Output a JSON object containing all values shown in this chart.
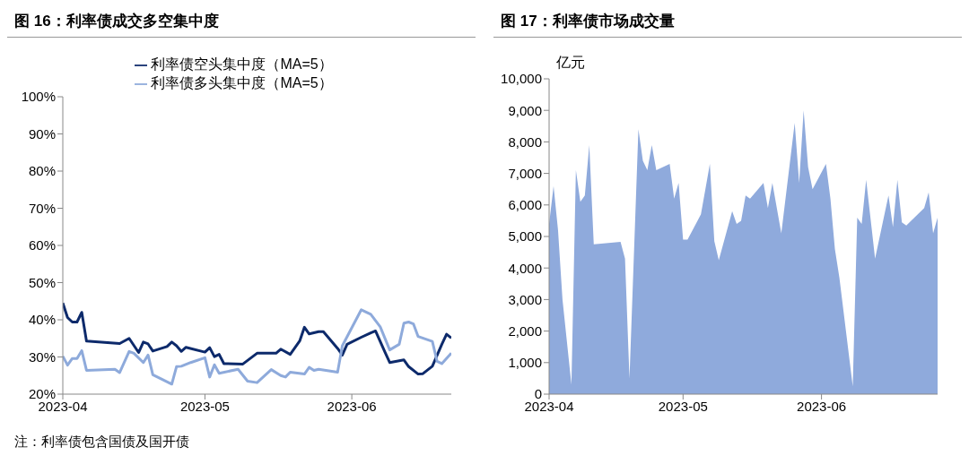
{
  "chart_data": [
    {
      "type": "line",
      "title": "图 16：利率债成交多空集中度",
      "legend": "top",
      "marker": "none",
      "line_style": "solid",
      "xlim": [
        "2023-04-01",
        "2023-06-22"
      ],
      "xticks": [
        {
          "value": "2023-04-01",
          "label": "2023-04"
        },
        {
          "value": "2023-05-01",
          "label": "2023-05"
        },
        {
          "value": "2023-06-01",
          "label": "2023-06"
        }
      ],
      "ylim": [
        20,
        100
      ],
      "yticks": [
        {
          "value": 20,
          "label": "20%"
        },
        {
          "value": 30,
          "label": "30%"
        },
        {
          "value": 40,
          "label": "40%"
        },
        {
          "value": 50,
          "label": "50%"
        },
        {
          "value": 60,
          "label": "60%"
        },
        {
          "value": 70,
          "label": "70%"
        },
        {
          "value": 80,
          "label": "80%"
        },
        {
          "value": 90,
          "label": "90%"
        },
        {
          "value": 100,
          "label": "100%"
        }
      ],
      "series": [
        {
          "name": "利率债空头集中度（MA=5）",
          "color": "#0d2a6b",
          "x": [
            "2023-04-01",
            "2023-04-02",
            "2023-04-03",
            "2023-04-04",
            "2023-04-05",
            "2023-04-06",
            "2023-04-13",
            "2023-04-15",
            "2023-04-17",
            "2023-04-18",
            "2023-04-19",
            "2023-04-20",
            "2023-04-23",
            "2023-04-24",
            "2023-04-25",
            "2023-04-26",
            "2023-04-27",
            "2023-05-01",
            "2023-05-02",
            "2023-05-03",
            "2023-05-04",
            "2023-05-05",
            "2023-05-09",
            "2023-05-12",
            "2023-05-16",
            "2023-05-17",
            "2023-05-19",
            "2023-05-21",
            "2023-05-22",
            "2023-05-23",
            "2023-05-25",
            "2023-05-26",
            "2023-05-29",
            "2023-05-30",
            "2023-05-31",
            "2023-06-03",
            "2023-06-05",
            "2023-06-06",
            "2023-06-08",
            "2023-06-09",
            "2023-06-12",
            "2023-06-13",
            "2023-06-15",
            "2023-06-16",
            "2023-06-18",
            "2023-06-20",
            "2023-06-21",
            "2023-06-22"
          ],
          "values": [
            44.5,
            40.6,
            39.4,
            39.4,
            42,
            34.3,
            33.6,
            35,
            31.2,
            34,
            33.5,
            31.6,
            32.8,
            34,
            33,
            31.5,
            32.6,
            31.3,
            32.5,
            30.1,
            30.7,
            28.2,
            28.1,
            31,
            31,
            32.1,
            30.7,
            34.3,
            38,
            36.2,
            36.8,
            36.8,
            32.3,
            30.5,
            33.4,
            35.3,
            36.5,
            37,
            31.3,
            28.5,
            29.2,
            27.4,
            25.4,
            25.5,
            27.5,
            33.4,
            36.1,
            35.1
          ]
        },
        {
          "name": "利率债多头集中度（MA=5）",
          "color": "#8eaadb",
          "x": [
            "2023-04-01",
            "2023-04-02",
            "2023-04-03",
            "2023-04-04",
            "2023-04-05",
            "2023-04-06",
            "2023-04-12",
            "2023-04-13",
            "2023-04-15",
            "2023-04-16",
            "2023-04-18",
            "2023-04-19",
            "2023-04-20",
            "2023-04-24",
            "2023-04-25",
            "2023-04-26",
            "2023-04-28",
            "2023-05-01",
            "2023-05-02",
            "2023-05-03",
            "2023-05-04",
            "2023-05-08",
            "2023-05-10",
            "2023-05-12",
            "2023-05-15",
            "2023-05-17",
            "2023-05-18",
            "2023-05-19",
            "2023-05-22",
            "2023-05-23",
            "2023-05-24",
            "2023-05-25",
            "2023-05-29",
            "2023-05-30",
            "2023-06-03",
            "2023-06-05",
            "2023-06-07",
            "2023-06-09",
            "2023-06-11",
            "2023-06-12",
            "2023-06-13",
            "2023-06-14",
            "2023-06-15",
            "2023-06-18",
            "2023-06-19",
            "2023-06-20",
            "2023-06-22"
          ],
          "values": [
            30.2,
            27.8,
            29.6,
            29.6,
            31.7,
            26.4,
            26.7,
            25.8,
            31.5,
            31,
            28.5,
            30.5,
            25.2,
            22.7,
            27.4,
            27.5,
            28.5,
            29.8,
            24.6,
            27.9,
            25.6,
            26.7,
            23.5,
            23.1,
            26.6,
            25,
            24.6,
            25.9,
            25.4,
            27.2,
            26.4,
            26.7,
            25.9,
            33,
            42.7,
            41.5,
            38.1,
            31.9,
            33.4,
            39.1,
            39.4,
            38.9,
            35.5,
            34.2,
            28.8,
            28.2,
            31
          ]
        }
      ],
      "annotations": [
        "注：利率债包含国债及国开债"
      ]
    },
    {
      "type": "area",
      "title": "图 17：利率债市场成交量",
      "ylabel": "亿元",
      "legend": false,
      "xlim": [
        "2023-04-01",
        "2023-06-27"
      ],
      "xticks": [
        {
          "value": "2023-04-01",
          "label": "2023-04"
        },
        {
          "value": "2023-05-01",
          "label": "2023-05"
        },
        {
          "value": "2023-06-01",
          "label": "2023-06"
        }
      ],
      "ylim": [
        0,
        10000
      ],
      "yticks": [
        0,
        {
          "value": 1000,
          "label": "1,000"
        },
        {
          "value": 2000,
          "label": "2,000"
        },
        {
          "value": 3000,
          "label": "3,000"
        },
        {
          "value": 4000,
          "label": "4,000"
        },
        {
          "value": 5000,
          "label": "5,000"
        },
        {
          "value": 6000,
          "label": "6,000"
        },
        {
          "value": 7000,
          "label": "7,000"
        },
        {
          "value": 8000,
          "label": "8,000"
        },
        {
          "value": 9000,
          "label": "9,000"
        },
        {
          "value": 10000,
          "label": "10,000"
        }
      ],
      "series": [
        {
          "color": "#8faadc",
          "x": [
            "2023-04-01",
            "2023-04-02",
            "2023-04-03",
            "2023-04-04",
            "2023-04-06",
            "2023-04-07",
            "2023-04-08",
            "2023-04-09",
            "2023-04-10",
            "2023-04-11",
            "2023-04-17",
            "2023-04-18",
            "2023-04-19",
            "2023-04-21",
            "2023-04-22",
            "2023-04-23",
            "2023-04-24",
            "2023-04-25",
            "2023-04-28",
            "2023-04-29",
            "2023-04-30",
            "2023-05-01",
            "2023-05-02",
            "2023-05-05",
            "2023-05-06",
            "2023-05-07",
            "2023-05-08",
            "2023-05-09",
            "2023-05-12",
            "2023-05-13",
            "2023-05-14",
            "2023-05-15",
            "2023-05-16",
            "2023-05-19",
            "2023-05-20",
            "2023-05-21",
            "2023-05-23",
            "2023-05-26",
            "2023-05-27",
            "2023-05-28",
            "2023-05-29",
            "2023-05-30",
            "2023-06-02",
            "2023-06-03",
            "2023-06-04",
            "2023-06-05",
            "2023-06-08",
            "2023-06-09",
            "2023-06-10",
            "2023-06-11",
            "2023-06-13",
            "2023-06-16",
            "2023-06-17",
            "2023-06-18",
            "2023-06-19",
            "2023-06-20",
            "2023-06-24",
            "2023-06-25",
            "2023-06-26",
            "2023-06-27"
          ],
          "values": [
            5400,
            6600,
            5200,
            3000,
            300,
            7100,
            6100,
            6300,
            7900,
            4750,
            4830,
            4300,
            500,
            8400,
            7400,
            7100,
            7900,
            7100,
            7300,
            6200,
            6700,
            4900,
            4900,
            5700,
            6500,
            7300,
            4850,
            4250,
            5800,
            5400,
            5500,
            6300,
            6200,
            6700,
            5900,
            6700,
            5100,
            8600,
            6700,
            9000,
            7200,
            6500,
            7300,
            6200,
            4600,
            3700,
            250,
            5600,
            5400,
            6800,
            4300,
            6300,
            5300,
            6800,
            5450,
            5350,
            5900,
            6400,
            5100,
            5600
          ]
        }
      ]
    }
  ]
}
